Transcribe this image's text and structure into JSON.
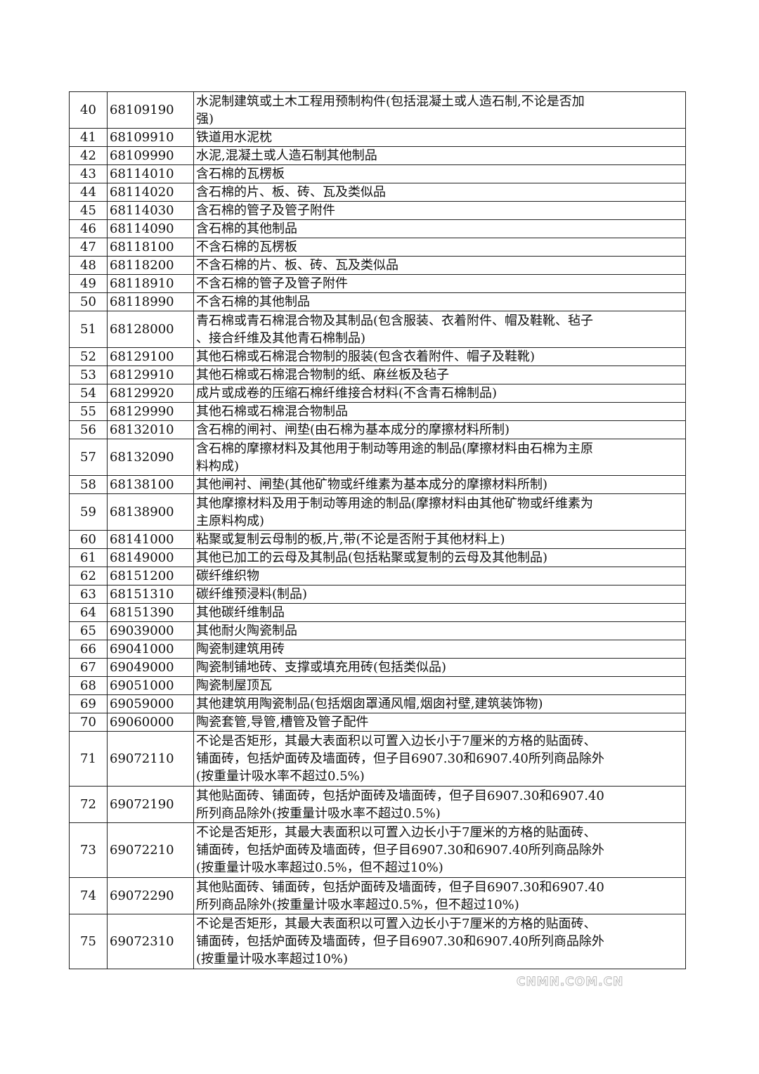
{
  "rows": [
    {
      "no": "40",
      "code": "68109190",
      "desc": "水泥制建筑或土木工程用预制构件(包括混凝土或人造石制,不论是否加\n强)"
    },
    {
      "no": "41",
      "code": "68109910",
      "desc": "铁道用水泥枕"
    },
    {
      "no": "42",
      "code": "68109990",
      "desc": "水泥,混凝土或人造石制其他制品"
    },
    {
      "no": "43",
      "code": "68114010",
      "desc": "含石棉的瓦楞板"
    },
    {
      "no": "44",
      "code": "68114020",
      "desc": "含石棉的片、板、砖、瓦及类似品"
    },
    {
      "no": "45",
      "code": "68114030",
      "desc": "含石棉的管子及管子附件"
    },
    {
      "no": "46",
      "code": "68114090",
      "desc": "含石棉的其他制品"
    },
    {
      "no": "47",
      "code": "68118100",
      "desc": "不含石棉的瓦楞板"
    },
    {
      "no": "48",
      "code": "68118200",
      "desc": "不含石棉的片、板、砖、瓦及类似品"
    },
    {
      "no": "49",
      "code": "68118910",
      "desc": "不含石棉的管子及管子附件"
    },
    {
      "no": "50",
      "code": "68118990",
      "desc": "不含石棉的其他制品"
    },
    {
      "no": "51",
      "code": "68128000",
      "desc": "青石棉或青石棉混合物及其制品(包含服装、衣着附件、帽及鞋靴、毡子\n、接合纤维及其他青石棉制品)"
    },
    {
      "no": "52",
      "code": "68129100",
      "desc": "其他石棉或石棉混合物制的服装(包含衣着附件、帽子及鞋靴)"
    },
    {
      "no": "53",
      "code": "68129910",
      "desc": "其他石棉或石棉混合物制的纸、麻丝板及毡子"
    },
    {
      "no": "54",
      "code": "68129920",
      "desc": "成片或成卷的压缩石棉纤维接合材料(不含青石棉制品)"
    },
    {
      "no": "55",
      "code": "68129990",
      "desc": "其他石棉或石棉混合物制品"
    },
    {
      "no": "56",
      "code": "68132010",
      "desc": "含石棉的闸衬、闸垫(由石棉为基本成分的摩擦材料所制)"
    },
    {
      "no": "57",
      "code": "68132090",
      "desc": "含石棉的摩擦材料及其他用于制动等用途的制品(摩擦材料由石棉为主原\n料构成)"
    },
    {
      "no": "58",
      "code": "68138100",
      "desc": "其他闸衬、闸垫(其他矿物或纤维素为基本成分的摩擦材料所制)"
    },
    {
      "no": "59",
      "code": "68138900",
      "desc": "其他摩擦材料及用于制动等用途的制品(摩擦材料由其他矿物或纤维素为\n主原料构成)"
    },
    {
      "no": "60",
      "code": "68141000",
      "desc": "粘聚或复制云母制的板,片,带(不论是否附于其他材料上)"
    },
    {
      "no": "61",
      "code": "68149000",
      "desc": "其他已加工的云母及其制品(包括粘聚或复制的云母及其他制品)"
    },
    {
      "no": "62",
      "code": "68151200",
      "desc": "碳纤维织物"
    },
    {
      "no": "63",
      "code": "68151310",
      "desc": "碳纤维预浸料(制品)"
    },
    {
      "no": "64",
      "code": "68151390",
      "desc": "其他碳纤维制品"
    },
    {
      "no": "65",
      "code": "69039000",
      "desc": "其他耐火陶瓷制品"
    },
    {
      "no": "66",
      "code": "69041000",
      "desc": "陶瓷制建筑用砖"
    },
    {
      "no": "67",
      "code": "69049000",
      "desc": "陶瓷制铺地砖、支撑或填充用砖(包括类似品)"
    },
    {
      "no": "68",
      "code": "69051000",
      "desc": "陶瓷制屋顶瓦"
    },
    {
      "no": "69",
      "code": "69059000",
      "desc": "其他建筑用陶瓷制品(包括烟囱罩通风帽,烟囱衬壁,建筑装饰物)"
    },
    {
      "no": "70",
      "code": "69060000",
      "desc": "陶瓷套管,导管,槽管及管子配件"
    },
    {
      "no": "71",
      "code": "69072110",
      "desc": "不论是否矩形，其最大表面积以可置入边长小于7厘米的方格的贴面砖、\n铺面砖，包括炉面砖及墙面砖，但子目6907.30和6907.40所列商品除外\n(按重量计吸水率不超过0.5%)"
    },
    {
      "no": "72",
      "code": "69072190",
      "desc": "其他贴面砖、铺面砖，包括炉面砖及墙面砖，但子目6907.30和6907.40\n所列商品除外(按重量计吸水率不超过0.5%)"
    },
    {
      "no": "73",
      "code": "69072210",
      "desc": "不论是否矩形，其最大表面积以可置入边长小于7厘米的方格的贴面砖、\n铺面砖，包括炉面砖及墙面砖，但子目6907.30和6907.40所列商品除外\n(按重量计吸水率超过0.5%，但不超过10%)"
    },
    {
      "no": "74",
      "code": "69072290",
      "desc": "其他贴面砖、铺面砖，包括炉面砖及墙面砖，但子目6907.30和6907.40\n所列商品除外(按重量计吸水率超过0.5%，但不超过10%)"
    },
    {
      "no": "75",
      "code": "69072310",
      "desc": "不论是否矩形，其最大表面积以可置入边长小于7厘米的方格的贴面砖、\n铺面砖，包括炉面砖及墙面砖，但子目6907.30和6907.40所列商品除外\n(按重量计吸水率超过10%)"
    }
  ],
  "watermark": "CNMN.COM.CN"
}
